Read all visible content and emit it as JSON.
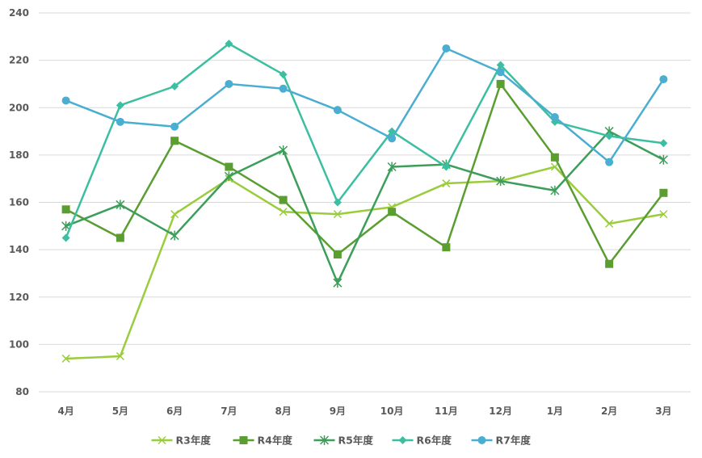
{
  "chart_data": {
    "type": "line",
    "categories": [
      "4月",
      "5月",
      "6月",
      "7月",
      "8月",
      "9月",
      "10月",
      "11月",
      "12月",
      "1月",
      "2月",
      "3月"
    ],
    "ylim": [
      80,
      240
    ],
    "yticks": [
      80,
      100,
      120,
      140,
      160,
      180,
      200,
      220,
      240
    ],
    "grid": true,
    "legend_position": "bottom",
    "series": [
      {
        "name": "R3年度",
        "color": "#9acd3c",
        "marker": "x",
        "values": [
          94,
          95,
          155,
          170,
          156,
          155,
          158,
          168,
          169,
          175,
          151,
          155
        ]
      },
      {
        "name": "R4年度",
        "color": "#5a9e31",
        "marker": "square",
        "values": [
          157,
          145,
          186,
          175,
          161,
          138,
          156,
          141,
          210,
          179,
          134,
          164
        ]
      },
      {
        "name": "R5年度",
        "color": "#3c9e5a",
        "marker": "star",
        "values": [
          150,
          159,
          146,
          171,
          182,
          126,
          175,
          176,
          169,
          165,
          190,
          178
        ]
      },
      {
        "name": "R6年度",
        "color": "#3cbfa0",
        "marker": "diamond",
        "values": [
          145,
          201,
          209,
          227,
          214,
          160,
          190,
          175,
          218,
          194,
          188,
          185
        ]
      },
      {
        "name": "R7年度",
        "color": "#4aaed0",
        "marker": "circle",
        "values": [
          203,
          194,
          192,
          210,
          208,
          199,
          187,
          225,
          215,
          196,
          177,
          212
        ]
      }
    ]
  }
}
